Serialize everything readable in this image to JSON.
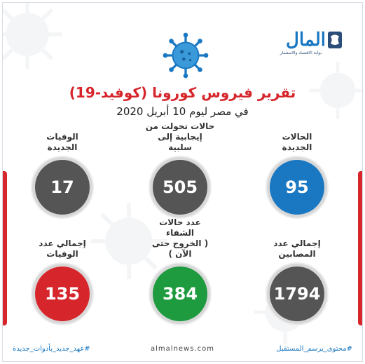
{
  "logo": {
    "name": "المال",
    "tagline": "بوابة الاقتصاد والاستثمار"
  },
  "header": {
    "title": "تقرير فيروس كورونا (كوفيد-19)",
    "subtitle": "في مصر ليوم 10 أبريل 2020"
  },
  "stats": {
    "new_cases": {
      "label1": "الحالات",
      "label2": "الجديدة",
      "value": "95"
    },
    "converted": {
      "label1": "حالات تحولت من",
      "label2": "إيجابية إلى سلبية",
      "value": "505"
    },
    "new_deaths": {
      "label1": "الوفيات",
      "label2": "الجديدة",
      "value": "17"
    },
    "total_cases": {
      "label1": "إجمالي عدد",
      "label2": "المصابين",
      "value": "1794"
    },
    "recovered": {
      "label1": "عدد حالات الشفاء",
      "label2": "( الخروج حتى الآن )",
      "value": "384"
    },
    "total_deaths": {
      "label1": "إجمالي عدد",
      "label2": "الوفيات",
      "value": "135"
    }
  },
  "footer": {
    "right_hashtag": "#محتوى_يرسم_المستقبل",
    "center_site": "almalnews.com",
    "left_hashtag": "#عهد_جديد_بأدوات_جديدة"
  },
  "colors": {
    "blue": "#1a78c2",
    "red": "#d6262c",
    "green": "#1e9a3f",
    "dark": "#555555"
  },
  "icons": [
    "virus-icon",
    "logo-mark-icon"
  ]
}
